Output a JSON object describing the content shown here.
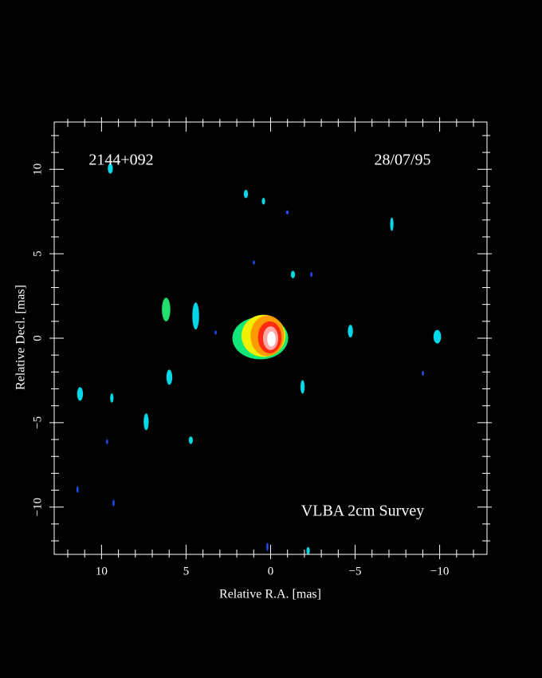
{
  "chart_data": {
    "type": "image",
    "annotations": [
      "2144+092",
      "28/07/95",
      "VLBA 2cm Survey"
    ],
    "xlabel": "Relative R.A. [mas]",
    "ylabel": "Relative Decl. [mas]",
    "xlim": [
      12.8,
      -12.8
    ],
    "ylim": [
      -12.8,
      12.8
    ],
    "xticks": [
      10,
      5,
      0,
      {
        "value": -5,
        "label": "−5"
      },
      {
        "value": -10,
        "label": "−10"
      }
    ],
    "yticks": [
      {
        "value": -10,
        "label": "−10"
      },
      {
        "value": -5,
        "label": "−5"
      },
      0,
      5,
      10
    ],
    "xminor": [
      12,
      11,
      9,
      8,
      7,
      6,
      4,
      3,
      2,
      1,
      -1,
      -2,
      -3,
      -4,
      -6,
      -7,
      -8,
      -9,
      -11,
      -12
    ],
    "yminor": [
      -12,
      -11,
      -9,
      -8,
      -7,
      -6,
      -4,
      -3,
      -2,
      -1,
      1,
      2,
      3,
      4,
      6,
      7,
      8,
      9,
      11,
      12
    ],
    "components": [
      {
        "x": 0.61,
        "y": 0.0,
        "w": 3.3,
        "h": 2.5,
        "color": "#10e878"
      },
      {
        "x": 0.42,
        "y": 0.14,
        "w": 2.6,
        "h": 2.5,
        "color": "#f0f000"
      },
      {
        "x": 0.19,
        "y": 0.14,
        "w": 2.0,
        "h": 2.4,
        "color": "#ff9a00"
      },
      {
        "x": 0.05,
        "y": 0.05,
        "w": 1.4,
        "h": 1.9,
        "color": "#ff2a10"
      },
      {
        "x": 0.0,
        "y": 0.0,
        "w": 0.9,
        "h": 1.4,
        "color": "#ffa8a8"
      },
      {
        "x": -0.05,
        "y": -0.05,
        "w": 0.5,
        "h": 0.9,
        "color": "#ffffff"
      },
      {
        "x": 9.48,
        "y": 10.05,
        "w": 0.3,
        "h": 0.6,
        "color": "#00d8e8"
      },
      {
        "x": 1.46,
        "y": 8.54,
        "w": 0.25,
        "h": 0.5,
        "color": "#00d8e8"
      },
      {
        "x": 0.42,
        "y": 8.11,
        "w": 0.2,
        "h": 0.4,
        "color": "#00d8e8"
      },
      {
        "x": -0.99,
        "y": 7.45,
        "w": 0.15,
        "h": 0.25,
        "color": "#2050ff"
      },
      {
        "x": -7.17,
        "y": 6.75,
        "w": 0.2,
        "h": 0.8,
        "color": "#00d8e8"
      },
      {
        "x": 0.99,
        "y": 4.48,
        "w": 0.12,
        "h": 0.25,
        "color": "#2050ff"
      },
      {
        "x": -1.32,
        "y": 3.77,
        "w": 0.25,
        "h": 0.45,
        "color": "#00d8e8"
      },
      {
        "x": -2.41,
        "y": 3.77,
        "w": 0.12,
        "h": 0.3,
        "color": "#2050ff"
      },
      {
        "x": 6.18,
        "y": 1.7,
        "w": 0.5,
        "h": 1.4,
        "color": "#20e070"
      },
      {
        "x": 4.43,
        "y": 1.32,
        "w": 0.4,
        "h": 1.6,
        "color": "#00d8e8"
      },
      {
        "x": 3.25,
        "y": 0.33,
        "w": 0.12,
        "h": 0.25,
        "color": "#2050ff"
      },
      {
        "x": -4.72,
        "y": 0.42,
        "w": 0.3,
        "h": 0.75,
        "color": "#00d8e8"
      },
      {
        "x": -9.86,
        "y": 0.09,
        "w": 0.45,
        "h": 0.8,
        "color": "#00d8e8"
      },
      {
        "x": -9.01,
        "y": -2.08,
        "w": 0.12,
        "h": 0.3,
        "color": "#2050ff"
      },
      {
        "x": 5.99,
        "y": -2.31,
        "w": 0.35,
        "h": 0.9,
        "color": "#00d8e8"
      },
      {
        "x": -1.89,
        "y": -2.88,
        "w": 0.25,
        "h": 0.8,
        "color": "#00d8e8"
      },
      {
        "x": 11.27,
        "y": -3.3,
        "w": 0.35,
        "h": 0.8,
        "color": "#00d8e8"
      },
      {
        "x": 9.39,
        "y": -3.54,
        "w": 0.2,
        "h": 0.55,
        "color": "#00d8e8"
      },
      {
        "x": 7.36,
        "y": -4.95,
        "w": 0.3,
        "h": 1.0,
        "color": "#00d8e8"
      },
      {
        "x": 9.67,
        "y": -6.13,
        "w": 0.12,
        "h": 0.3,
        "color": "#2050ff"
      },
      {
        "x": 4.72,
        "y": -6.04,
        "w": 0.25,
        "h": 0.45,
        "color": "#00d8e8"
      },
      {
        "x": 11.42,
        "y": -8.96,
        "w": 0.12,
        "h": 0.4,
        "color": "#2050ff"
      },
      {
        "x": 9.29,
        "y": -9.76,
        "w": 0.12,
        "h": 0.4,
        "color": "#2050ff"
      },
      {
        "x": 0.19,
        "y": -12.36,
        "w": 0.12,
        "h": 0.5,
        "color": "#2050ff"
      },
      {
        "x": -2.22,
        "y": -12.59,
        "w": 0.2,
        "h": 0.45,
        "color": "#00d8e8"
      }
    ]
  }
}
